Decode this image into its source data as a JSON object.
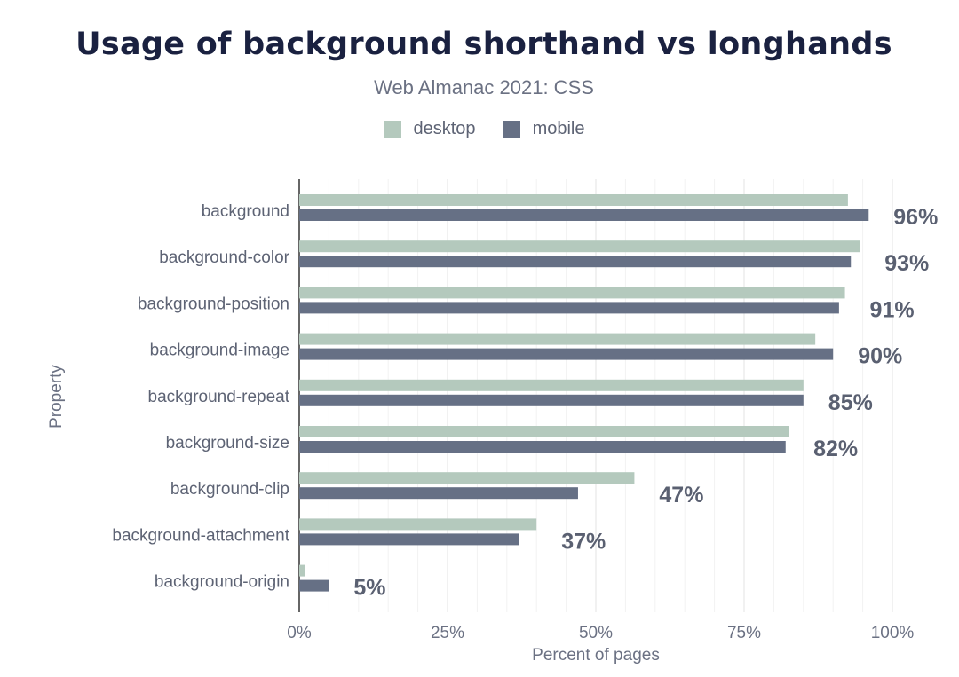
{
  "chart_data": {
    "type": "bar",
    "orientation": "horizontal",
    "title": "Usage of background shorthand vs longhands",
    "subtitle": "Web Almanac 2021: CSS",
    "xlabel": "Percent of pages",
    "ylabel": "Property",
    "xlim": [
      0,
      100
    ],
    "x_ticks": [
      "0%",
      "25%",
      "50%",
      "75%",
      "100%"
    ],
    "legend_position": "top-center",
    "categories": [
      "background",
      "background-color",
      "background-position",
      "background-image",
      "background-repeat",
      "background-size",
      "background-clip",
      "background-attachment",
      "background-origin"
    ],
    "series": [
      {
        "name": "desktop",
        "color": "#b4c9bd",
        "values": [
          92.5,
          94.5,
          92,
          87,
          85,
          82.5,
          56.5,
          40,
          1
        ]
      },
      {
        "name": "mobile",
        "color": "#667085",
        "values": [
          96,
          93,
          91,
          90,
          85,
          82,
          47,
          37,
          5
        ]
      }
    ],
    "data_labels": [
      "96%",
      "93%",
      "91%",
      "90%",
      "85%",
      "82%",
      "47%",
      "37%",
      "5%"
    ]
  }
}
